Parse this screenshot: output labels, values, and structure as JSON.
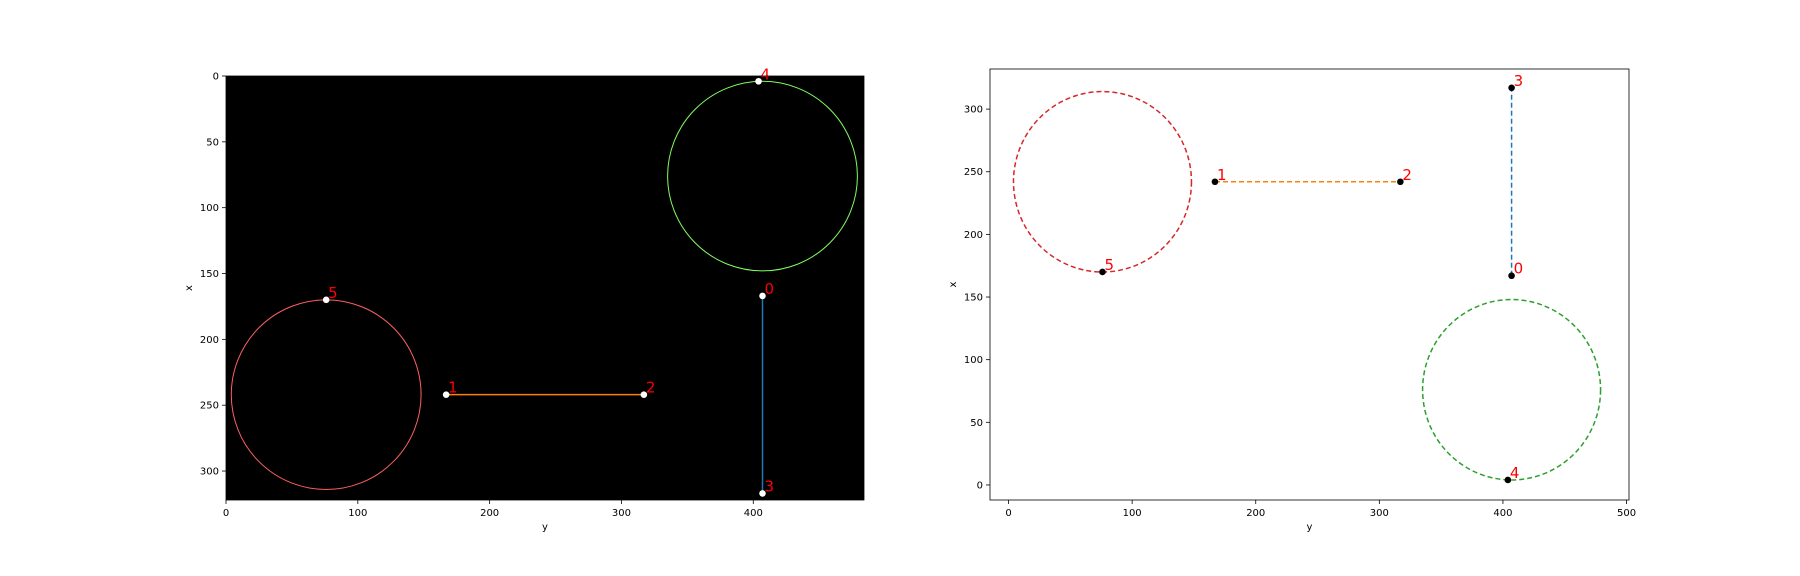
{
  "chart_data": [
    {
      "type": "scatter",
      "background": "#000000",
      "xlabel": "y",
      "ylabel": "x",
      "xlim": [
        0,
        484
      ],
      "ylim": [
        322,
        0
      ],
      "y_inverted": true,
      "xticks": [
        "0",
        "100",
        "200",
        "300",
        "400"
      ],
      "yticks": [
        "0",
        "50",
        "100",
        "150",
        "200",
        "250",
        "300"
      ],
      "xtick_values": [
        0,
        100,
        200,
        300,
        400
      ],
      "ytick_values": [
        0,
        50,
        100,
        150,
        200,
        250,
        300
      ],
      "point_color": "#ffffff",
      "label_color": "#ff0000",
      "points": [
        {
          "label": "0",
          "x": 407,
          "y": 167
        },
        {
          "label": "1",
          "x": 167,
          "y": 242
        },
        {
          "label": "2",
          "x": 317,
          "y": 242
        },
        {
          "label": "3",
          "x": 407,
          "y": 317
        },
        {
          "label": "4",
          "x": 404,
          "y": 4
        },
        {
          "label": "5",
          "x": 76,
          "y": 170
        }
      ],
      "segments": [
        {
          "from": "0",
          "to": "3",
          "color": "#1f77b4"
        },
        {
          "from": "1",
          "to": "2",
          "color": "#ff7f0e"
        }
      ],
      "circles": [
        {
          "cx": 76,
          "cy": 242,
          "r": 72,
          "color": "#ff6060"
        },
        {
          "cx": 407,
          "cy": 76,
          "r": 72,
          "color": "#80ff60"
        }
      ]
    },
    {
      "type": "scatter",
      "background": "#ffffff",
      "xlabel": "y",
      "ylabel": "x",
      "xlim": [
        -15,
        502
      ],
      "ylim": [
        -12,
        332
      ],
      "y_inverted": false,
      "xticks": [
        "0",
        "100",
        "200",
        "300",
        "400",
        "500"
      ],
      "yticks": [
        "0",
        "50",
        "100",
        "150",
        "200",
        "250",
        "300"
      ],
      "xtick_values": [
        0,
        100,
        200,
        300,
        400,
        500
      ],
      "ytick_values": [
        0,
        50,
        100,
        150,
        200,
        250,
        300
      ],
      "point_color": "#000000",
      "label_color": "#ff0000",
      "points": [
        {
          "label": "0",
          "x": 407,
          "y": 167
        },
        {
          "label": "1",
          "x": 167,
          "y": 242
        },
        {
          "label": "2",
          "x": 317,
          "y": 242
        },
        {
          "label": "3",
          "x": 407,
          "y": 317
        },
        {
          "label": "4",
          "x": 404,
          "y": 4
        },
        {
          "label": "5",
          "x": 76,
          "y": 170
        }
      ],
      "segments": [
        {
          "from": "0",
          "to": "3",
          "color": "#1f77b4",
          "dashed": true
        },
        {
          "from": "1",
          "to": "2",
          "color": "#ff7f0e",
          "dashed": true
        }
      ],
      "circles": [
        {
          "cx": 76,
          "cy": 242,
          "r": 72,
          "color": "#d62728",
          "dashed": true
        },
        {
          "cx": 407,
          "cy": 76,
          "r": 72,
          "color": "#2ca02c",
          "dashed": true
        }
      ]
    }
  ]
}
